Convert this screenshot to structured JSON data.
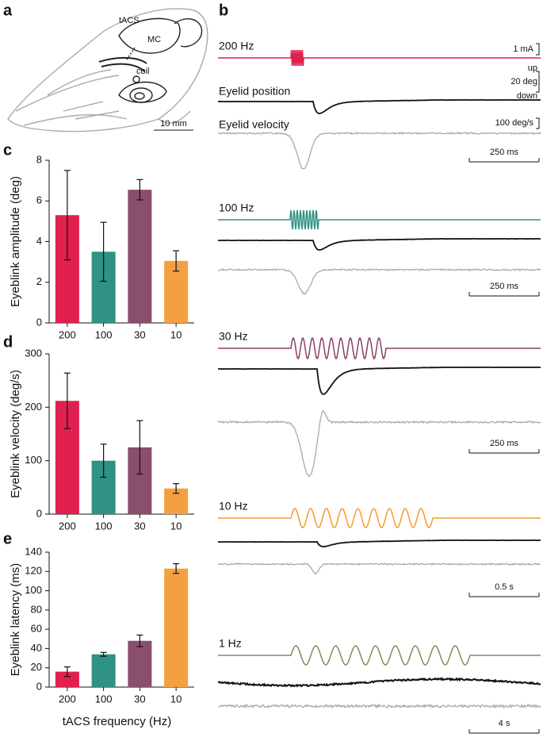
{
  "panel_labels": [
    "a",
    "b",
    "c",
    "d",
    "e"
  ],
  "anatomy": {
    "labels": [
      "tACS",
      "MC",
      "coil"
    ],
    "scale_bar": "10 mm"
  },
  "traces": {
    "signal_labels": [
      "Eyelid position",
      "Eyelid velocity"
    ],
    "current_scale": "1 mA",
    "position_scale": [
      "up",
      "20 deg",
      "down"
    ],
    "velocity_scale": "100 deg/s",
    "groups": [
      {
        "frequency": "200 Hz",
        "color": "#e0204f",
        "time_scale": "250 ms"
      },
      {
        "frequency": "100 Hz",
        "color": "#2f9282",
        "time_scale": "250 ms"
      },
      {
        "frequency": "30 Hz",
        "color": "#8a3f64",
        "time_scale": "250 ms"
      },
      {
        "frequency": "10 Hz",
        "color": "#f39a34",
        "time_scale": "0.5 s"
      },
      {
        "frequency": "1 Hz",
        "color": "#7d8e5c",
        "time_scale": "4 s"
      }
    ]
  },
  "chart_data": [
    {
      "type": "bar",
      "y_label": "Eyeblink amplitude (deg)",
      "categories": [
        "200",
        "100",
        "30",
        "10"
      ],
      "values": [
        5.3,
        3.5,
        6.55,
        3.05
      ],
      "errors": [
        2.2,
        1.45,
        0.5,
        0.5
      ],
      "colors": [
        "#e0204f",
        "#2f9282",
        "#8a4f6e",
        "#f4a042"
      ],
      "ylim": [
        0,
        8
      ],
      "yticks": [
        0,
        2,
        4,
        6,
        8
      ]
    },
    {
      "type": "bar",
      "y_label": "Eyeblink velocity (deg/s)",
      "categories": [
        "200",
        "100",
        "30",
        "10"
      ],
      "values": [
        212,
        100,
        125,
        48
      ],
      "errors": [
        52,
        31,
        50,
        9
      ],
      "colors": [
        "#e0204f",
        "#2f9282",
        "#8a4f6e",
        "#f4a042"
      ],
      "ylim": [
        0,
        300
      ],
      "yticks": [
        0,
        100,
        200,
        300
      ]
    },
    {
      "type": "bar",
      "y_label": "Eyeblink latency (ms)",
      "x_label": "tACS frequency (Hz)",
      "categories": [
        "200",
        "100",
        "30",
        "10"
      ],
      "values": [
        16,
        34,
        48,
        123
      ],
      "errors": [
        5,
        2,
        6,
        5
      ],
      "colors": [
        "#e0204f",
        "#2f9282",
        "#8a4f6e",
        "#f4a042"
      ],
      "ylim": [
        0,
        140
      ],
      "yticks": [
        0,
        20,
        40,
        60,
        80,
        100,
        120,
        140
      ]
    }
  ]
}
